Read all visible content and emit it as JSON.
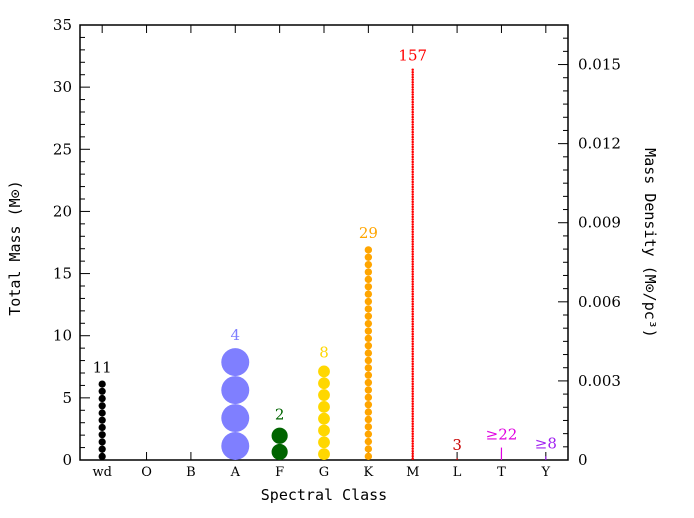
{
  "chart_data": {
    "type": "scatter",
    "xlabel": "Spectral Class",
    "ylabel": "Total Mass (M⊙)",
    "ylabel_right": "Mass Density (M⊙/pc³)",
    "ylim": [
      0,
      35
    ],
    "yticks": [
      0,
      5,
      10,
      15,
      20,
      25,
      30,
      35
    ],
    "ylim_right": [
      0,
      0.0165
    ],
    "yticks_right": [
      "0",
      "0.003",
      "0.006",
      "0.009",
      "0.012",
      "0.015"
    ],
    "yticks_right_values": [
      0,
      0.003,
      0.006,
      0.009,
      0.012,
      0.015
    ],
    "categories": [
      "wd",
      "O",
      "B",
      "A",
      "F",
      "G",
      "K",
      "M",
      "L",
      "T",
      "Y"
    ],
    "series": [
      {
        "category": "wd",
        "count_label": "11",
        "count": 11,
        "total_mass": 6.4,
        "color": "#000000"
      },
      {
        "category": "A",
        "count_label": "4",
        "count": 4,
        "total_mass": 9.0,
        "color": "#7f7fff"
      },
      {
        "category": "F",
        "count_label": "2",
        "count": 2,
        "total_mass": 2.6,
        "color": "#006400"
      },
      {
        "category": "G",
        "count_label": "8",
        "count": 8,
        "total_mass": 7.6,
        "color": "#ffd700"
      },
      {
        "category": "K",
        "count_label": "29",
        "count": 29,
        "total_mass": 17.2,
        "color": "#ffa500"
      },
      {
        "category": "M",
        "count_label": "157",
        "count": 157,
        "total_mass": 31.5,
        "color": "#ff0000"
      },
      {
        "category": "L",
        "count_label": "3",
        "count": 3,
        "total_mass": 0.15,
        "color": "#c80000"
      },
      {
        "category": "T",
        "count_label": "≥22",
        "count": 22,
        "total_mass": 1.0,
        "color": "#e000e0"
      },
      {
        "category": "Y",
        "count_label": "≥8",
        "count": 8,
        "total_mass": 0.3,
        "color": "#a020f0"
      }
    ]
  }
}
